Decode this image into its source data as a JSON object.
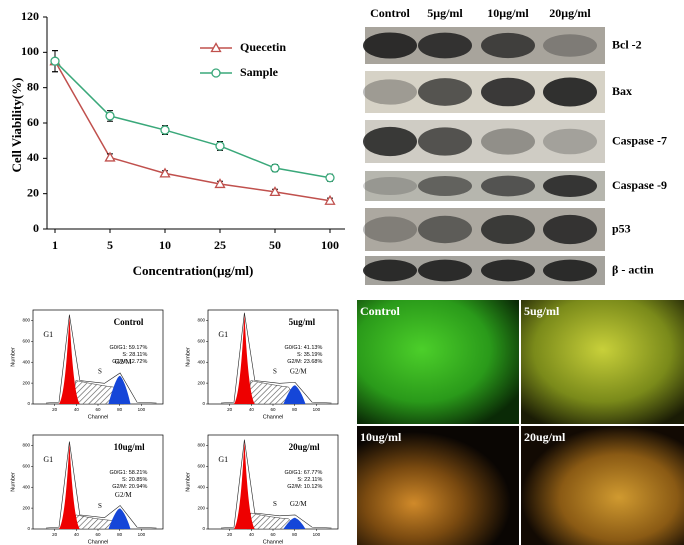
{
  "chart_data": {
    "type": "line",
    "y_label": "Cell Viability(%)",
    "x_label": "Concentration(μg/ml)",
    "categories": [
      "1",
      "5",
      "10",
      "25",
      "50",
      "100"
    ],
    "series": [
      {
        "name": "Quecetin",
        "color": "#c0504d",
        "marker": "triangle",
        "values": [
          95,
          40.5,
          31.5,
          25.5,
          21,
          16
        ],
        "errors": [
          6,
          2,
          1.5,
          1.5,
          1.5,
          1.5
        ]
      },
      {
        "name": "Sample",
        "color": "#3aa87a",
        "marker": "circle",
        "values": [
          95,
          64,
          56,
          47,
          34.5,
          29
        ],
        "errors": [
          6,
          3,
          2.5,
          2.5,
          2,
          2
        ]
      }
    ],
    "ylim": [
      0,
      120
    ],
    "yticks": [
      0,
      20,
      40,
      60,
      80,
      100,
      120
    ],
    "legend": "upper right"
  },
  "western_blot": {
    "columns": [
      "Control",
      "5μg/ml",
      "10μg/ml",
      "20μg/ml"
    ],
    "rows": [
      "Bcl -2",
      "Bax",
      "Caspase -7",
      "Caspase -9",
      "p53",
      "β - actin"
    ]
  },
  "flow_cytometry": {
    "y_label": "Number",
    "x_label": "Channel",
    "xticks": [
      20,
      40,
      60,
      80,
      100
    ],
    "yticks": [
      0,
      200,
      400,
      600,
      800
    ],
    "peaks": [
      "G1",
      "S",
      "G2/M"
    ],
    "panels": [
      {
        "title": "Control",
        "stats": [
          "G0/G1: 59.17%",
          "S: 28.11%",
          "G2/M: 12.72%"
        ]
      },
      {
        "title": "5ug/ml",
        "stats": [
          "G0/G1: 41.13%",
          "S: 35.19%",
          "G2/M: 23.68%"
        ]
      },
      {
        "title": "10ug/ml",
        "stats": [
          "G0/G1: 58.21%",
          "S: 20.85%",
          "G2/M: 20.94%"
        ]
      },
      {
        "title": "20ug/ml",
        "stats": [
          "G0/G1: 67.77%",
          "S: 22.11%",
          "G2/M: 10.12%"
        ]
      }
    ]
  },
  "micrographs": {
    "labels": [
      "Control",
      "5ug/ml",
      "10ug/ml",
      "20ug/ml"
    ]
  }
}
